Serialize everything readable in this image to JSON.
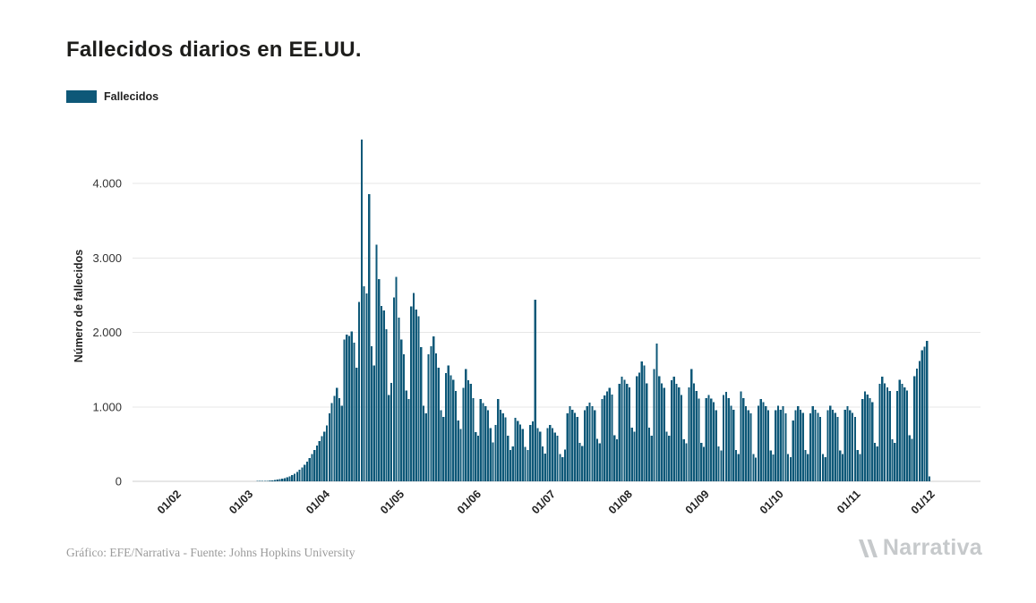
{
  "page": {
    "title": "Fallecidos diarios en EE.UU.",
    "footer_credit": "Gráfico: EFE/Narrativa - Fuente: Johns Hopkins University",
    "brand": "Narrativa"
  },
  "legend": {
    "label": "Fallecidos",
    "color": "#0e5878"
  },
  "chart_data": {
    "type": "bar",
    "title": "Fallecidos diarios en EE.UU.",
    "ylabel": "Número de fallecidos",
    "xlabel": "",
    "series_name": "Fallecidos",
    "bar_color": "#0e5878",
    "grid": "horizontal",
    "legend_position": "top-left",
    "ylim": [
      0,
      4660
    ],
    "domain_days": 342,
    "y_ticks": [
      {
        "value": 0,
        "label": "0"
      },
      {
        "value": 1000,
        "label": "1.000"
      },
      {
        "value": 2000,
        "label": "2.000"
      },
      {
        "value": 3000,
        "label": "3.000"
      },
      {
        "value": 4000,
        "label": "4.000"
      }
    ],
    "x_ticks": [
      {
        "day": 18,
        "label": "01/02"
      },
      {
        "day": 47,
        "label": "01/03"
      },
      {
        "day": 78,
        "label": "01/04"
      },
      {
        "day": 108,
        "label": "01/05"
      },
      {
        "day": 139,
        "label": "01/06"
      },
      {
        "day": 169,
        "label": "01/07"
      },
      {
        "day": 200,
        "label": "01/08"
      },
      {
        "day": 231,
        "label": "01/09"
      },
      {
        "day": 261,
        "label": "01/10"
      },
      {
        "day": 292,
        "label": "01/11"
      },
      {
        "day": 322,
        "label": "01/12"
      }
    ],
    "values": [
      0,
      0,
      0,
      0,
      0,
      0,
      0,
      0,
      0,
      0,
      0,
      0,
      0,
      0,
      0,
      0,
      0,
      0,
      0,
      0,
      0,
      0,
      0,
      0,
      0,
      0,
      0,
      0,
      0,
      0,
      0,
      0,
      0,
      0,
      0,
      0,
      0,
      0,
      0,
      0,
      0,
      0,
      0,
      1,
      1,
      2,
      2,
      2,
      3,
      3,
      4,
      5,
      6,
      7,
      9,
      11,
      14,
      18,
      23,
      29,
      36,
      45,
      56,
      69,
      85,
      104,
      127,
      154,
      186,
      223,
      265,
      312,
      364,
      420,
      480,
      542,
      605,
      668,
      750,
      912,
      1049,
      1150,
      1255,
      1120,
      1018,
      1906,
      1970,
      1952,
      2012,
      1860,
      1528,
      2408,
      4591,
      2618,
      2522,
      3857,
      1812,
      1554,
      3179,
      2716,
      2352,
      2296,
      2042,
      1157,
      1324,
      2470,
      2746,
      2201,
      1906,
      1703,
      1218,
      1104,
      2351,
      2528,
      2304,
      2216,
      1801,
      1015,
      912,
      1703,
      1812,
      1947,
      1715,
      1523,
      958,
      864,
      1452,
      1557,
      1423,
      1361,
      1214,
      816,
      705,
      1254,
      1508,
      1356,
      1309,
      1116,
      658,
      612,
      1104,
      1053,
      1007,
      956,
      712,
      524,
      758,
      1107,
      963,
      914,
      857,
      611,
      421,
      468,
      854,
      812,
      764,
      703,
      462,
      418,
      756,
      807,
      2437,
      712,
      664,
      467,
      372,
      714,
      758,
      716,
      654,
      612,
      368,
      324,
      428,
      912,
      1007,
      964,
      918,
      862,
      518,
      473,
      958,
      1012,
      1056,
      1008,
      953,
      568,
      512,
      1108,
      1154,
      1207,
      1253,
      1164,
      618,
      567,
      1312,
      1408,
      1361,
      1309,
      1264,
      718,
      667,
      1412,
      1458,
      1607,
      1553,
      1318,
      723,
      614,
      1508,
      1852,
      1413,
      1316,
      1258,
      668,
      612,
      1357,
      1404,
      1312,
      1264,
      1158,
      564,
      512,
      1263,
      1507,
      1318,
      1216,
      1112,
      518,
      464,
      1116,
      1158,
      1112,
      1064,
      958,
      468,
      412,
      1157,
      1204,
      1118,
      1016,
      964,
      418,
      366,
      1207,
      1116,
      1012,
      958,
      912,
      364,
      318,
      1018,
      1107,
      1063,
      1012,
      957,
      412,
      363,
      958,
      1013,
      964,
      1008,
      912,
      368,
      324,
      818,
      958,
      1012,
      964,
      916,
      418,
      366,
      912,
      1008,
      963,
      918,
      864,
      367,
      322,
      958,
      1013,
      964,
      918,
      863,
      412,
      368,
      964,
      1012,
      958,
      916,
      864,
      418,
      366,
      1108,
      1207,
      1164,
      1118,
      1063,
      518,
      468,
      1312,
      1407,
      1316,
      1263,
      1212,
      564,
      518,
      1216,
      1363,
      1312,
      1264,
      1218,
      618,
      568,
      1412,
      1516,
      1618,
      1757,
      1808,
      1884,
      64
    ]
  }
}
